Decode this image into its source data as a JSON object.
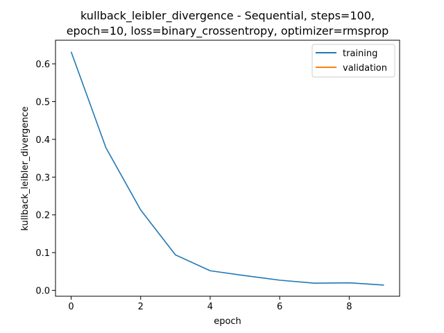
{
  "chart_data": {
    "type": "line",
    "title_line1": "kullback_leibler_divergence - Sequential, steps=100,",
    "title_line2": "epoch=10, loss=binary_crossentropy, optimizer=rmsprop",
    "xlabel": "epoch",
    "ylabel": "kullback_leibler_divergence",
    "xlim": [
      -0.45,
      9.45
    ],
    "ylim": [
      -0.0155,
      0.6625
    ],
    "xticks": [
      0,
      2,
      4,
      6,
      8
    ],
    "xtick_labels": [
      "0",
      "2",
      "4",
      "6",
      "8"
    ],
    "yticks": [
      0.0,
      0.1,
      0.2,
      0.3,
      0.4,
      0.5,
      0.6
    ],
    "ytick_labels": [
      "0.0",
      "0.1",
      "0.2",
      "0.3",
      "0.4",
      "0.5",
      "0.6"
    ],
    "grid": false,
    "legend_position": "top-right",
    "series": [
      {
        "name": "training",
        "color": "#1f77b4",
        "x": [
          0,
          1,
          2,
          3,
          4,
          5,
          6,
          7,
          8,
          9
        ],
        "values": [
          0.632,
          0.378,
          0.213,
          0.094,
          0.052,
          0.039,
          0.027,
          0.019,
          0.02,
          0.014
        ]
      },
      {
        "name": "validation",
        "color": "#ff7f0e",
        "x": [],
        "values": []
      }
    ]
  }
}
